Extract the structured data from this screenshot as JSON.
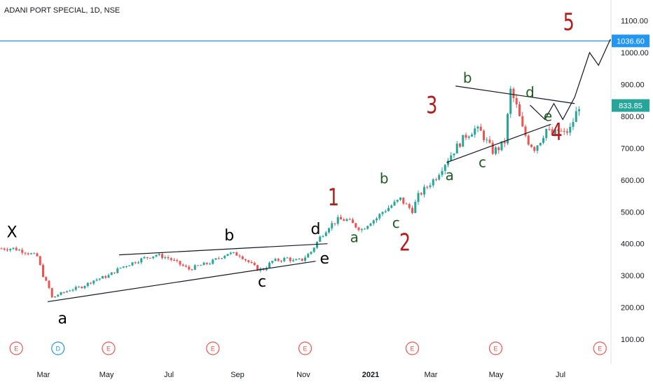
{
  "header": {
    "title": "ADANI PORT SPECIAL, 1D, NSE"
  },
  "colors": {
    "candle_up": "#26a69a",
    "candle_down": "#ef5350",
    "hline": "#2196f3",
    "price_badge": "#26a69a",
    "price_line": "#2196f3",
    "wave_major": "#b71c1c",
    "wave_minor_green": "#1b5e20",
    "wave_minor_black": "#000000",
    "event_red": "#ef5350",
    "event_blue": "#2196f3"
  },
  "chart_data": {
    "type": "candlestick",
    "symbol": "ADANI PORT SPECIAL",
    "interval": "1D",
    "exchange": "NSE",
    "y_axis": {
      "ticks": [
        "1100.00",
        "1000.00",
        "900.00",
        "800.00",
        "700.00",
        "600.00",
        "500.00",
        "400.00",
        "300.00",
        "200.00",
        "100.00"
      ],
      "tick_values": [
        1100,
        1000,
        900,
        800,
        700,
        600,
        500,
        400,
        300,
        200,
        100
      ],
      "range": [
        88,
        1150
      ]
    },
    "x_axis": {
      "ticks": [
        "Mar",
        "May",
        "Jul",
        "Sep",
        "Nov",
        "2021",
        "Mar",
        "May",
        "Jul"
      ]
    },
    "horizontal_line": {
      "value": 1036.6,
      "label": "1036.60"
    },
    "last_price": {
      "value": 833.85,
      "label": "833.85"
    },
    "price_path": [
      [
        0,
        385
      ],
      [
        4,
        385
      ],
      [
        8,
        375
      ],
      [
        12,
        360
      ],
      [
        14,
        300
      ],
      [
        16,
        260
      ],
      [
        17,
        230
      ],
      [
        19,
        240
      ],
      [
        23,
        255
      ],
      [
        27,
        265
      ],
      [
        31,
        285
      ],
      [
        36,
        300
      ],
      [
        40,
        325
      ],
      [
        44,
        340
      ],
      [
        48,
        355
      ],
      [
        52,
        365
      ],
      [
        56,
        355
      ],
      [
        58,
        345
      ],
      [
        61,
        330
      ],
      [
        63,
        320
      ],
      [
        66,
        330
      ],
      [
        70,
        340
      ],
      [
        73,
        355
      ],
      [
        76,
        370
      ],
      [
        80,
        365
      ],
      [
        82,
        350
      ],
      [
        84,
        335
      ],
      [
        86,
        320
      ],
      [
        88,
        320
      ],
      [
        91,
        345
      ],
      [
        94,
        350
      ],
      [
        96,
        355
      ],
      [
        98,
        345
      ],
      [
        101,
        350
      ],
      [
        104,
        375
      ],
      [
        107,
        420
      ],
      [
        110,
        455
      ],
      [
        113,
        475
      ],
      [
        116,
        475
      ],
      [
        119,
        455
      ],
      [
        121,
        445
      ],
      [
        124,
        470
      ],
      [
        126,
        480
      ],
      [
        128,
        500
      ],
      [
        131,
        520
      ],
      [
        134,
        540
      ],
      [
        136,
        520
      ],
      [
        138,
        505
      ],
      [
        140,
        550
      ],
      [
        143,
        580
      ],
      [
        146,
        610
      ],
      [
        148,
        640
      ],
      [
        151,
        680
      ],
      [
        153,
        705
      ],
      [
        156,
        740
      ],
      [
        159,
        760
      ],
      [
        161,
        750
      ],
      [
        163,
        720
      ],
      [
        165,
        690
      ],
      [
        167,
        700
      ],
      [
        169,
        720
      ],
      [
        171,
        880
      ],
      [
        173,
        830
      ],
      [
        175,
        760
      ],
      [
        177,
        720
      ],
      [
        179,
        700
      ],
      [
        181,
        725
      ],
      [
        183,
        760
      ],
      [
        185,
        740
      ],
      [
        187,
        755
      ],
      [
        189,
        745
      ],
      [
        191,
        760
      ],
      [
        193,
        810
      ],
      [
        194,
        834
      ]
    ],
    "trendlines": [
      {
        "name": "triangle-lower-1",
        "from": [
          16,
          218
        ],
        "to": [
          106,
          345
        ]
      },
      {
        "name": "triangle-upper-1",
        "from": [
          40,
          365
        ],
        "to": [
          110,
          400
        ]
      },
      {
        "name": "triangle-upper-2",
        "from": [
          153,
          895
        ],
        "to": [
          193,
          840
        ]
      },
      {
        "name": "triangle-lower-2",
        "from": [
          150,
          655
        ],
        "to": [
          185,
          775
        ]
      }
    ],
    "projection": [
      [
        178,
        835
      ],
      [
        183,
        790
      ],
      [
        186,
        840
      ],
      [
        189,
        790
      ],
      [
        193,
        860
      ],
      [
        198,
        1000
      ],
      [
        201,
        960
      ],
      [
        205,
        1042
      ]
    ],
    "wave_labels": [
      {
        "text": "X",
        "group": "minor_black",
        "x": 4,
        "price": 420
      },
      {
        "text": "a",
        "group": "minor_black",
        "x": 21,
        "price": 150
      },
      {
        "text": "b",
        "group": "minor_black",
        "x": 77,
        "price": 410
      },
      {
        "text": "c",
        "group": "minor_black",
        "x": 88,
        "price": 265
      },
      {
        "text": "d",
        "group": "minor_black",
        "x": 106,
        "price": 430
      },
      {
        "text": "e",
        "group": "minor_black",
        "x": 109,
        "price": 338
      },
      {
        "text": "1",
        "group": "major",
        "x": 112,
        "price": 520
      },
      {
        "text": "a",
        "group": "minor_green",
        "x": 119,
        "price": 405
      },
      {
        "text": "b",
        "group": "minor_green",
        "x": 129,
        "price": 590
      },
      {
        "text": "c",
        "group": "minor_green",
        "x": 133,
        "price": 450
      },
      {
        "text": "2",
        "group": "major",
        "x": 136,
        "price": 378
      },
      {
        "text": "3",
        "group": "major",
        "x": 145,
        "price": 810
      },
      {
        "text": "a",
        "group": "minor_green",
        "x": 151,
        "price": 600
      },
      {
        "text": "b",
        "group": "minor_green",
        "x": 157,
        "price": 905
      },
      {
        "text": "c",
        "group": "minor_green",
        "x": 162,
        "price": 640
      },
      {
        "text": "d",
        "group": "minor_green",
        "x": 178,
        "price": 860
      },
      {
        "text": "e",
        "group": "minor_green",
        "x": 184,
        "price": 785
      },
      {
        "text": "4",
        "group": "major",
        "x": 187,
        "price": 725
      },
      {
        "text": "5",
        "group": "major",
        "x": 191,
        "price": 1070
      }
    ],
    "events": [
      {
        "label": "E",
        "x": 5,
        "color": "red"
      },
      {
        "label": "D",
        "x": 19,
        "color": "blue"
      },
      {
        "label": "E",
        "x": 36,
        "color": "red"
      },
      {
        "label": "E",
        "x": 71,
        "color": "red"
      },
      {
        "label": "E",
        "x": 102,
        "color": "red"
      },
      {
        "label": "E",
        "x": 138,
        "color": "red"
      },
      {
        "label": "E",
        "x": 166,
        "color": "red"
      },
      {
        "label": "E",
        "x": 201,
        "color": "red"
      }
    ]
  }
}
